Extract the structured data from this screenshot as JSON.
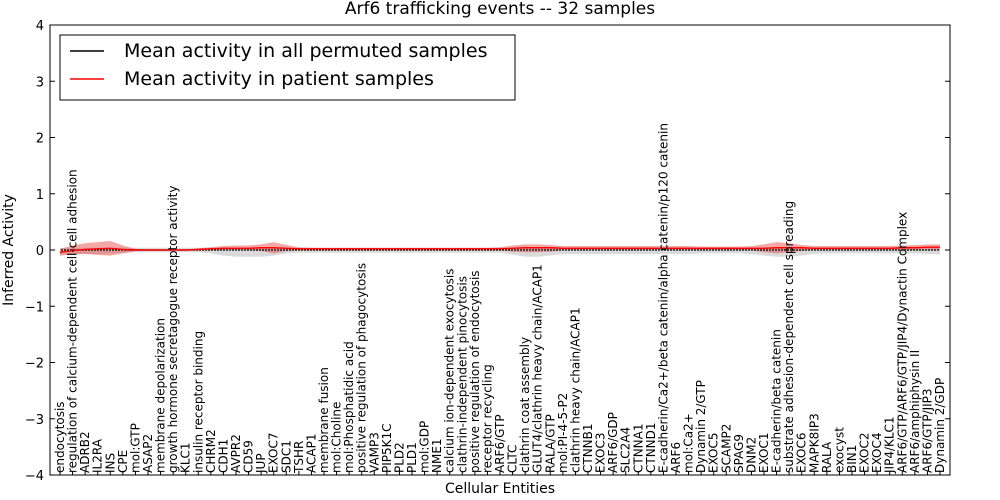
{
  "chart_data": {
    "type": "line",
    "title": "Arf6 trafficking events -- 32 samples",
    "xlabel": "Cellular Entities",
    "ylabel": "Inferred Activity",
    "ylim": [
      -4,
      4
    ],
    "yticks": [
      "−4",
      "−3",
      "−2",
      "−1",
      "0",
      "1",
      "2",
      "3",
      "4"
    ],
    "grid": false,
    "legend_position": "top-left",
    "categories": [
      "endocytosis",
      "regulation of calcium-dependent cell-cell adhesion",
      "ADRB2",
      "IL2RA",
      "INS",
      "CPE",
      "mol:GTP",
      "ASAP2",
      "membrane depolarization",
      "growth hormone secretagogue receptor activity",
      "KLC1",
      "insulin receptor binding",
      "CHRM2",
      "CDH1",
      "AVPR2",
      "CD59",
      "JUP",
      "EXOC7",
      "SDC1",
      "TSHR",
      "ACAP1",
      "membrane fusion",
      "mol:Choline",
      "mol:Phosphatidic acid",
      "positive regulation of phagocytosis",
      "VAMP3",
      "PIP5K1C",
      "PLD2",
      "PLD1",
      "mol:GDP",
      "NME1",
      "calcium ion-dependent exocytosis",
      "clathrin-independent pinocytosis",
      "positive regulation of endocytosis",
      "receptor recycling",
      "ARF6/GTP",
      "CLTC",
      "clathrin coat assembly",
      "GLUT4/clathrin heavy chain/ACAP1",
      "RALA/GTP",
      "mol:PI-4-5-P2",
      "clathrin heavy chain/ACAP1",
      "CTNNB1",
      "EXOC3",
      "ARF6/GDP",
      "SLC2A4",
      "CTNNA1",
      "CTNND1",
      "E-cadherin/Ca2+/beta catenin/alpha catenin/p120 catenin",
      "ARF6",
      "mol:Ca2+",
      "Dynamin 2/GTP",
      "EXOC5",
      "SCAMP2",
      "SPAG9",
      "DNM2",
      "EXOC1",
      "E-cadherin/beta catenin",
      "substrate adhesion-dependent cell spreading",
      "EXOC6",
      "MAPK8IP3",
      "RALA",
      "exocyst",
      "BIN1",
      "EXOC2",
      "EXOC4",
      "JIP4/KLC1",
      "ARF6/GTP/ARF6/GTP/JIP4/Dynactin Complex",
      "ARF6/amphiphysin II",
      "ARF6/GTP/JIP3",
      "Dynamin 2/GDP"
    ],
    "series": [
      {
        "name": "Mean activity in all permuted samples",
        "color": "#000000",
        "values": [
          0.0,
          0.0,
          0.0,
          0.0,
          0.0,
          0.0,
          0.0,
          0.0,
          0.0,
          0.0,
          0.0,
          0.0,
          0.0,
          0.0,
          0.0,
          0.0,
          0.0,
          0.0,
          0.0,
          0.0,
          0.0,
          0.0,
          0.0,
          0.0,
          0.0,
          0.0,
          0.0,
          0.0,
          0.0,
          0.0,
          0.0,
          0.0,
          0.0,
          0.0,
          0.0,
          0.0,
          0.0,
          0.0,
          0.0,
          0.0,
          0.0,
          0.0,
          0.0,
          0.0,
          0.0,
          0.0,
          0.0,
          0.0,
          0.0,
          0.0,
          0.0,
          0.0,
          0.0,
          0.0,
          0.0,
          0.0,
          0.0,
          0.0,
          0.0,
          0.0,
          0.0,
          0.0,
          0.0,
          0.0,
          0.0,
          0.0,
          0.0,
          0.0,
          0.0,
          0.0,
          0.0
        ],
        "band_lower": [
          -0.08,
          -0.07,
          -0.07,
          -0.07,
          -0.06,
          -0.05,
          -0.04,
          -0.04,
          -0.04,
          -0.04,
          -0.04,
          -0.04,
          -0.06,
          -0.1,
          -0.12,
          -0.12,
          -0.12,
          -0.1,
          -0.06,
          -0.05,
          -0.05,
          -0.05,
          -0.05,
          -0.05,
          -0.05,
          -0.05,
          -0.05,
          -0.05,
          -0.05,
          -0.05,
          -0.05,
          -0.05,
          -0.05,
          -0.05,
          -0.05,
          -0.05,
          -0.08,
          -0.12,
          -0.12,
          -0.1,
          -0.07,
          -0.07,
          -0.07,
          -0.07,
          -0.07,
          -0.07,
          -0.07,
          -0.07,
          -0.07,
          -0.07,
          -0.07,
          -0.06,
          -0.06,
          -0.06,
          -0.06,
          -0.07,
          -0.1,
          -0.12,
          -0.12,
          -0.1,
          -0.07,
          -0.06,
          -0.06,
          -0.06,
          -0.06,
          -0.06,
          -0.06,
          -0.06,
          -0.06,
          -0.07,
          -0.08
        ],
        "band_upper": [
          0.04,
          0.04,
          0.04,
          0.04,
          0.04,
          0.04,
          0.04,
          0.04,
          0.04,
          0.04,
          0.04,
          0.04,
          0.04,
          0.04,
          0.04,
          0.04,
          0.04,
          0.04,
          0.04,
          0.04,
          0.04,
          0.04,
          0.04,
          0.04,
          0.04,
          0.04,
          0.04,
          0.04,
          0.04,
          0.04,
          0.04,
          0.04,
          0.04,
          0.04,
          0.04,
          0.04,
          0.04,
          0.04,
          0.04,
          0.04,
          0.04,
          0.04,
          0.04,
          0.04,
          0.04,
          0.04,
          0.04,
          0.04,
          0.04,
          0.04,
          0.04,
          0.04,
          0.04,
          0.04,
          0.04,
          0.04,
          0.04,
          0.04,
          0.04,
          0.04,
          0.04,
          0.04,
          0.04,
          0.04,
          0.04,
          0.04,
          0.04,
          0.04,
          0.04,
          0.04,
          0.04
        ]
      },
      {
        "name": "Mean activity in patient samples",
        "color": "#ff0000",
        "values": [
          -0.04,
          -0.01,
          0.01,
          0.02,
          0.03,
          0.01,
          0.0,
          0.0,
          0.0,
          0.0,
          0.0,
          0.01,
          0.02,
          0.03,
          0.03,
          0.03,
          0.04,
          0.04,
          0.03,
          0.02,
          0.02,
          0.02,
          0.02,
          0.02,
          0.02,
          0.02,
          0.02,
          0.02,
          0.02,
          0.02,
          0.02,
          0.02,
          0.02,
          0.02,
          0.02,
          0.02,
          0.03,
          0.04,
          0.04,
          0.04,
          0.03,
          0.03,
          0.03,
          0.03,
          0.03,
          0.03,
          0.03,
          0.03,
          0.03,
          0.03,
          0.03,
          0.03,
          0.03,
          0.03,
          0.03,
          0.03,
          0.03,
          0.04,
          0.04,
          0.04,
          0.03,
          0.03,
          0.03,
          0.03,
          0.03,
          0.03,
          0.03,
          0.04,
          0.04,
          0.05,
          0.05
        ],
        "band_lower": [
          -0.1,
          -0.08,
          -0.07,
          -0.09,
          -0.1,
          -0.06,
          -0.02,
          -0.01,
          -0.01,
          -0.01,
          -0.01,
          -0.01,
          0.0,
          0.0,
          -0.01,
          -0.01,
          -0.02,
          -0.06,
          -0.02,
          0.0,
          0.0,
          0.0,
          0.0,
          0.0,
          0.0,
          0.0,
          0.0,
          0.0,
          0.0,
          0.0,
          0.0,
          0.0,
          0.0,
          0.0,
          0.0,
          0.0,
          -0.03,
          -0.04,
          -0.04,
          -0.03,
          -0.01,
          -0.01,
          -0.01,
          -0.01,
          0.0,
          0.0,
          0.0,
          0.0,
          0.0,
          0.0,
          0.0,
          0.0,
          0.0,
          0.0,
          0.0,
          -0.01,
          -0.04,
          -0.06,
          -0.04,
          -0.02,
          0.0,
          0.0,
          0.0,
          0.0,
          0.0,
          0.0,
          0.0,
          0.0,
          0.0,
          0.0,
          0.0
        ],
        "band_upper": [
          0.02,
          0.08,
          0.12,
          0.14,
          0.16,
          0.08,
          0.02,
          0.01,
          0.01,
          0.01,
          0.01,
          0.03,
          0.05,
          0.07,
          0.08,
          0.08,
          0.1,
          0.14,
          0.09,
          0.05,
          0.04,
          0.04,
          0.04,
          0.04,
          0.04,
          0.04,
          0.04,
          0.04,
          0.04,
          0.04,
          0.04,
          0.04,
          0.04,
          0.04,
          0.04,
          0.05,
          0.08,
          0.1,
          0.1,
          0.09,
          0.07,
          0.07,
          0.07,
          0.07,
          0.07,
          0.07,
          0.07,
          0.07,
          0.07,
          0.07,
          0.07,
          0.06,
          0.06,
          0.06,
          0.06,
          0.07,
          0.1,
          0.14,
          0.12,
          0.09,
          0.07,
          0.07,
          0.07,
          0.07,
          0.07,
          0.07,
          0.07,
          0.08,
          0.09,
          0.1,
          0.1
        ]
      }
    ]
  }
}
